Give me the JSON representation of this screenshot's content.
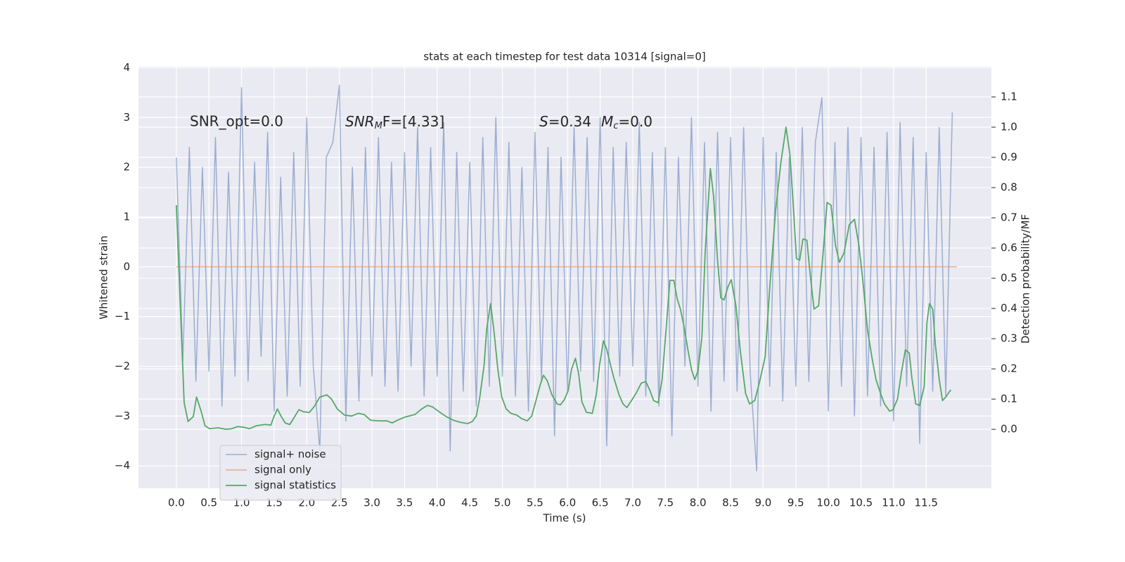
{
  "chart_data": {
    "type": "line",
    "title": "stats at each timestep for test data 10314 [signal=0]",
    "xlabel": "Time (s)",
    "ylabel": "Whitened strain",
    "y2label": "Detection probability/MF",
    "annotations": [
      {
        "text": "SNR_opt=0.0"
      },
      {
        "main": "SNR",
        "sub": "M",
        "rest": "F=[4.33]"
      },
      {
        "s": "S",
        "s_rest": "=0.34",
        "main": "M",
        "sub": "c",
        "rest": "=0.0"
      }
    ],
    "xlim": [
      -0.58,
      12.5
    ],
    "ylim": [
      -4.45,
      4.02
    ],
    "y2lim": [
      -0.195,
      1.2
    ],
    "xticks": [
      {
        "value": 0,
        "label": "0.0"
      },
      {
        "value": 0.5,
        "label": "0.5"
      },
      {
        "value": 1,
        "label": "1.0"
      },
      {
        "value": 1.5,
        "label": "1.5"
      },
      {
        "value": 2,
        "label": "2.0"
      },
      {
        "value": 2.5,
        "label": "2.5"
      },
      {
        "value": 3,
        "label": "3.0"
      },
      {
        "value": 3.5,
        "label": "3.5"
      },
      {
        "value": 4,
        "label": "4.0"
      },
      {
        "value": 4.5,
        "label": "4.5"
      },
      {
        "value": 5,
        "label": "5.0"
      },
      {
        "value": 5.5,
        "label": "5.5"
      },
      {
        "value": 6,
        "label": "6.0"
      },
      {
        "value": 6.5,
        "label": "6.5"
      },
      {
        "value": 7,
        "label": "7.0"
      },
      {
        "value": 7.5,
        "label": "7.5"
      },
      {
        "value": 8,
        "label": "8.0"
      },
      {
        "value": 8.5,
        "label": "8.5"
      },
      {
        "value": 9,
        "label": "9.0"
      },
      {
        "value": 9.5,
        "label": "9.5"
      },
      {
        "value": 10,
        "label": "10.0"
      },
      {
        "value": 10.5,
        "label": "10.5"
      },
      {
        "value": 11,
        "label": "11.0"
      },
      {
        "value": 11.5,
        "label": "11.5"
      }
    ],
    "yticks": [
      {
        "value": -4,
        "label": "−4"
      },
      {
        "value": -3,
        "label": "−3"
      },
      {
        "value": -2,
        "label": "−2"
      },
      {
        "value": -1,
        "label": "−1"
      },
      0,
      1,
      2,
      3,
      4
    ],
    "y2ticks": [
      {
        "value": 0,
        "label": "0.0"
      },
      {
        "value": 0.1,
        "label": "0.1"
      },
      {
        "value": 0.2,
        "label": "0.2"
      },
      {
        "value": 0.3,
        "label": "0.3"
      },
      {
        "value": 0.4,
        "label": "0.4"
      },
      {
        "value": 0.5,
        "label": "0.5"
      },
      {
        "value": 0.6,
        "label": "0.6"
      },
      {
        "value": 0.7,
        "label": "0.7"
      },
      {
        "value": 0.8,
        "label": "0.8"
      },
      {
        "value": 0.9,
        "label": "0.9"
      },
      {
        "value": 1,
        "label": "1.0"
      },
      {
        "value": 1.1,
        "label": "1.1"
      }
    ],
    "grid": true,
    "legend": "lower left",
    "series": [
      {
        "name": "signal+ noise",
        "color": "#4c72b0",
        "x": [
          0,
          0.1,
          0.2,
          0.3,
          0.4,
          0.5,
          0.6,
          0.7,
          0.8,
          0.9,
          1,
          1.1,
          1.2,
          1.3,
          1.4,
          1.5,
          1.6,
          1.7,
          1.8,
          1.9,
          2,
          2.1,
          2.2,
          2.3,
          2.4,
          2.5,
          2.6,
          2.7,
          2.8,
          2.9,
          3,
          3.1,
          3.2,
          3.3,
          3.4,
          3.5,
          3.6,
          3.7,
          3.8,
          3.9,
          4,
          4.1,
          4.2,
          4.3,
          4.4,
          4.5,
          4.6,
          4.7,
          4.8,
          4.9,
          5,
          5.1,
          5.2,
          5.3,
          5.4,
          5.5,
          5.6,
          5.7,
          5.8,
          5.9,
          6,
          6.1,
          6.2,
          6.3,
          6.4,
          6.5,
          6.6,
          6.7,
          6.8,
          6.9,
          7,
          7.1,
          7.2,
          7.3,
          7.4,
          7.5,
          7.6,
          7.7,
          7.8,
          7.9,
          8,
          8.1,
          8.2,
          8.3,
          8.4,
          8.5,
          8.6,
          8.7,
          8.8,
          8.9,
          9,
          9.1,
          9.2,
          9.3,
          9.4,
          9.5,
          9.6,
          9.7,
          9.8,
          9.9,
          10,
          10.1,
          10.2,
          10.3,
          10.4,
          10.5,
          10.6,
          10.7,
          10.8,
          10.9,
          11,
          11.1,
          11.2,
          11.3,
          11.4,
          11.5,
          11.6,
          11.7,
          11.8,
          11.9
        ],
        "values": [
          2.2,
          -1.9,
          2.4,
          -2.3,
          2.0,
          -2.1,
          2.6,
          -2.8,
          1.9,
          -2.2,
          3.6,
          -2.3,
          2.1,
          -1.8,
          2.7,
          -2.9,
          1.8,
          -2.6,
          2.3,
          -2.4,
          3.0,
          -2.0,
          -3.7,
          2.2,
          2.5,
          3.65,
          -3.1,
          2.0,
          -2.7,
          2.4,
          -2.2,
          2.6,
          -2.4,
          2.1,
          -2.5,
          2.3,
          -2.0,
          2.8,
          -2.6,
          2.4,
          -2.2,
          2.9,
          -3.7,
          2.3,
          -2.5,
          2.1,
          -2.8,
          2.6,
          -2.4,
          3.0,
          -2.2,
          2.5,
          -2.6,
          2.0,
          -2.9,
          2.7,
          -2.3,
          2.4,
          -3.4,
          2.2,
          -2.5,
          2.8,
          -2.1,
          2.6,
          -2.3,
          3.0,
          -3.6,
          2.4,
          -2.2,
          2.5,
          -2.0,
          2.9,
          -2.6,
          2.3,
          -2.8,
          2.4,
          -3.4,
          2.2,
          -2.0,
          3.0,
          -2.4,
          2.5,
          -2.9,
          2.7,
          -2.3,
          2.6,
          -2.5,
          2.8,
          -2.1,
          -4.1,
          2.6,
          -2.4,
          2.3,
          -2.7,
          2.2,
          -2.4,
          2.8,
          -2.3,
          2.5,
          3.4,
          -2.9,
          2.5,
          -2.4,
          2.8,
          -3.0,
          2.6,
          -2.6,
          2.4,
          -2.8,
          2.7,
          -3.1,
          2.9,
          -2.4,
          2.6,
          -3.55,
          2.3,
          -2.5,
          2.8,
          -2.6,
          3.1
        ]
      },
      {
        "name": "signal only",
        "color": "#dd8452",
        "x": [
          0,
          11.97
        ],
        "values": [
          0,
          0
        ]
      },
      {
        "name": "signal statistics",
        "color": "#55a868",
        "axis": "y2",
        "x": [
          0,
          0.12,
          0.18,
          0.26,
          0.31,
          0.38,
          0.44,
          0.51,
          0.64,
          0.76,
          0.85,
          0.94,
          1.03,
          1.12,
          1.23,
          1.36,
          1.45,
          1.5,
          1.55,
          1.61,
          1.67,
          1.74,
          1.8,
          1.88,
          1.95,
          2.04,
          2.12,
          2.2,
          2.31,
          2.38,
          2.47,
          2.58,
          2.69,
          2.79,
          2.88,
          2.98,
          3.12,
          3.23,
          3.31,
          3.39,
          3.5,
          3.66,
          3.76,
          3.85,
          3.93,
          4.03,
          4.14,
          4.25,
          4.36,
          4.47,
          4.54,
          4.6,
          4.65,
          4.72,
          4.76,
          4.82,
          4.87,
          4.93,
          4.99,
          5.06,
          5.13,
          5.22,
          5.3,
          5.38,
          5.45,
          5.51,
          5.58,
          5.63,
          5.69,
          5.76,
          5.84,
          5.89,
          5.95,
          6.01,
          6.06,
          6.12,
          6.17,
          6.22,
          6.29,
          6.38,
          6.44,
          6.49,
          6.55,
          6.6,
          6.66,
          6.71,
          6.79,
          6.85,
          6.91,
          6.98,
          7.06,
          7.13,
          7.2,
          7.26,
          7.32,
          7.39,
          7.45,
          7.52,
          7.57,
          7.63,
          7.68,
          7.73,
          7.78,
          7.84,
          7.9,
          7.95,
          8,
          8.06,
          8.11,
          8.19,
          8.24,
          8.3,
          8.35,
          8.4,
          8.46,
          8.51,
          8.58,
          8.65,
          8.73,
          8.79,
          8.87,
          8.94,
          9.03,
          9.1,
          9.19,
          9.27,
          9.35,
          9.41,
          9.46,
          9.51,
          9.56,
          9.61,
          9.67,
          9.72,
          9.78,
          9.85,
          9.91,
          9.98,
          10.04,
          10.11,
          10.17,
          10.24,
          10.32,
          10.4,
          10.47,
          10.54,
          10.6,
          10.67,
          10.73,
          10.8,
          10.86,
          10.94,
          10.99,
          11.06,
          11.12,
          11.18,
          11.24,
          11.28,
          11.34,
          11.4,
          11.47,
          11.51,
          11.55,
          11.6,
          11.64,
          11.7,
          11.75,
          11.8,
          11.86,
          11.88
        ],
        "values": [
          0.742,
          0.088,
          0.026,
          0.042,
          0.107,
          0.06,
          0.012,
          0.002,
          0.005,
          0,
          0.002,
          0.009,
          0.007,
          0.002,
          0.012,
          0.016,
          0.014,
          0.044,
          0.067,
          0.042,
          0.021,
          0.016,
          0.037,
          0.065,
          0.058,
          0.056,
          0.077,
          0.107,
          0.114,
          0.1,
          0.067,
          0.047,
          0.044,
          0.053,
          0.049,
          0.03,
          0.028,
          0.028,
          0.021,
          0.03,
          0.04,
          0.049,
          0.067,
          0.079,
          0.074,
          0.058,
          0.042,
          0.03,
          0.023,
          0.019,
          0.026,
          0.044,
          0.1,
          0.212,
          0.333,
          0.416,
          0.328,
          0.2,
          0.107,
          0.067,
          0.053,
          0.047,
          0.035,
          0.028,
          0.044,
          0.091,
          0.147,
          0.179,
          0.16,
          0.114,
          0.084,
          0.081,
          0.098,
          0.128,
          0.198,
          0.235,
          0.184,
          0.091,
          0.056,
          0.053,
          0.114,
          0.212,
          0.293,
          0.265,
          0.212,
          0.17,
          0.114,
          0.084,
          0.072,
          0.095,
          0.123,
          0.153,
          0.158,
          0.13,
          0.095,
          0.088,
          0.165,
          0.356,
          0.493,
          0.493,
          0.433,
          0.398,
          0.347,
          0.27,
          0.198,
          0.165,
          0.193,
          0.305,
          0.584,
          0.863,
          0.77,
          0.56,
          0.435,
          0.428,
          0.472,
          0.495,
          0.412,
          0.258,
          0.119,
          0.084,
          0.095,
          0.153,
          0.24,
          0.467,
          0.723,
          0.881,
          1.0,
          0.909,
          0.747,
          0.565,
          0.56,
          0.63,
          0.626,
          0.514,
          0.398,
          0.409,
          0.56,
          0.751,
          0.742,
          0.607,
          0.553,
          0.584,
          0.677,
          0.695,
          0.607,
          0.467,
          0.328,
          0.235,
          0.165,
          0.119,
          0.084,
          0.06,
          0.065,
          0.1,
          0.188,
          0.263,
          0.253,
          0.17,
          0.084,
          0.079,
          0.142,
          0.351,
          0.416,
          0.398,
          0.281,
          0.165,
          0.095,
          0.107,
          0.126,
          0.13
        ]
      }
    ]
  }
}
